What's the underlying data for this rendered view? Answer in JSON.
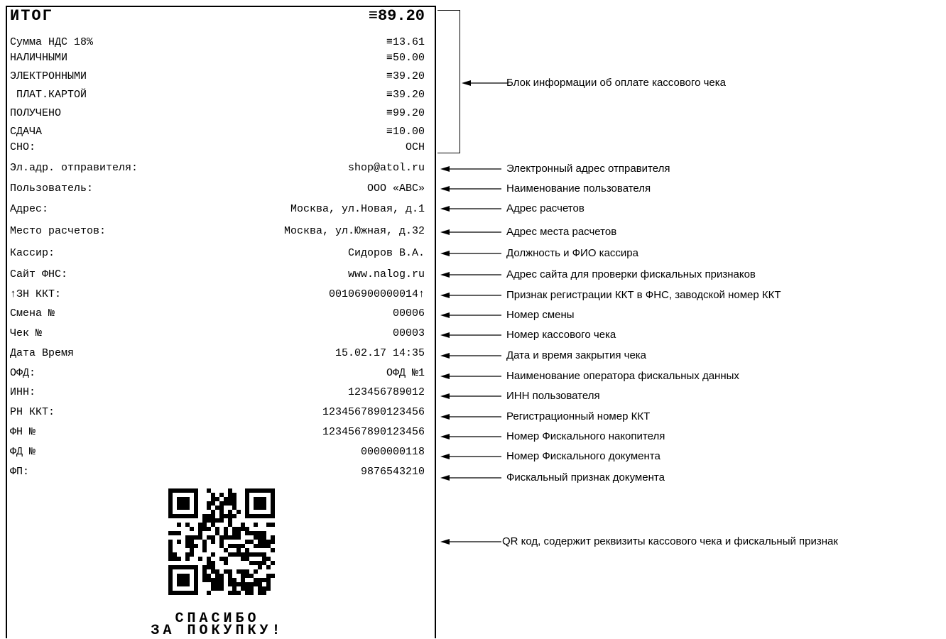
{
  "receipt": {
    "total": {
      "label": "ИТОГ",
      "value": "≡89.20"
    },
    "rows": [
      {
        "label": "Сумма НДС 18%",
        "value": "≡13.61"
      },
      {
        "label": "НАЛИЧНЫМИ",
        "value": "≡50.00"
      },
      {
        "label": "ЭЛЕКТРОННЫМИ",
        "value": "≡39.20"
      },
      {
        "label": " ПЛАТ.КАРТОЙ",
        "value": "≡39.20"
      },
      {
        "label": "ПОЛУЧЕНО",
        "value": "≡99.20"
      },
      {
        "label": "СДАЧА",
        "value": "≡10.00"
      },
      {
        "label": "СНО:",
        "value": "ОСН"
      },
      {
        "label": "Эл.адр. отправителя:",
        "value": "shop@atol.ru"
      },
      {
        "label": "Пользователь:",
        "value": "ООО «АВС»"
      },
      {
        "label": "Адрес:",
        "value": "Москва, ул.Новая, д.1"
      },
      {
        "label": "Место расчетов:",
        "value": "Москва, ул.Южная, д.32"
      },
      {
        "label": "Кассир:",
        "value": "Сидоров В.А."
      },
      {
        "label": "Сайт ФНС:",
        "value": "www.nalog.ru"
      },
      {
        "label": "↑ЗН ККТ:",
        "value": "00106900000014↑"
      },
      {
        "label": "Смена №",
        "value": "00006"
      },
      {
        "label": "Чек №",
        "value": "00003"
      },
      {
        "label": "Дата Время",
        "value": "15.02.17 14:35"
      },
      {
        "label": "ОФД:",
        "value": "ОФД №1"
      },
      {
        "label": "ИНН:",
        "value": "123456789012"
      },
      {
        "label": "РН ККТ:",
        "value": "1234567890123456"
      },
      {
        "label": "ФН №",
        "value": "1234567890123456"
      },
      {
        "label": "ФД №",
        "value": "0000000118"
      },
      {
        "label": "ФП:",
        "value": "9876543210"
      }
    ],
    "thanks_line1": "СПАСИБО",
    "thanks_line2": "ЗА ПОКУПКУ!"
  },
  "annotations": [
    {
      "text": "Блок информации об оплате кассового чека"
    },
    {
      "text": "Электронный адрес отправителя"
    },
    {
      "text": "Наименование пользователя"
    },
    {
      "text": "Адрес расчетов"
    },
    {
      "text": "Адрес места расчетов"
    },
    {
      "text": "Должность и ФИО кассира"
    },
    {
      "text": "Адрес сайта для проверки фискальных признаков"
    },
    {
      "text": "Признак регистрации ККТ в ФНС, заводской номер ККТ"
    },
    {
      "text": "Номер смены"
    },
    {
      "text": "Номер кассового чека"
    },
    {
      "text": "Дата и время закрытия чека"
    },
    {
      "text": "Наименование оператора фискальных данных"
    },
    {
      "text": "ИНН пользователя"
    },
    {
      "text": "Регистрационный номер ККТ"
    },
    {
      "text": "Номер Фискального накопителя"
    },
    {
      "text": "Номер Фискального документа"
    },
    {
      "text": "Фискальный признак документа"
    },
    {
      "text": "QR код, содержит реквизиты кассового чека и фискальный признак"
    }
  ]
}
